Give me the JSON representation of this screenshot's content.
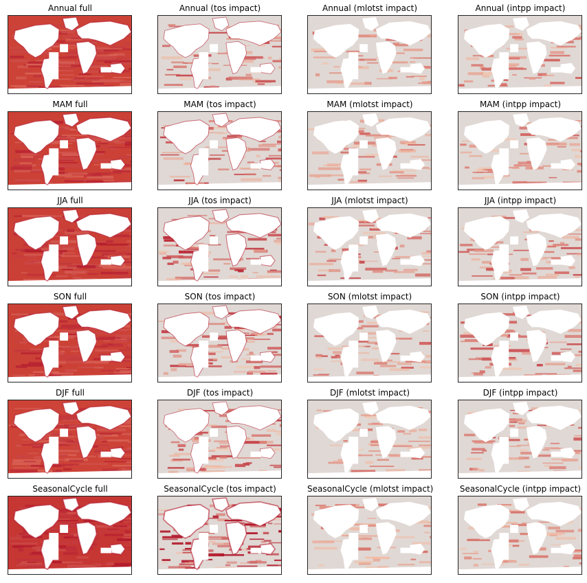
{
  "figure": {
    "rows": [
      {
        "panels": [
          {
            "title": "Annual full",
            "kind": "full",
            "intensity": 0.7
          },
          {
            "title": "Annual (tos impact)",
            "kind": "tos",
            "intensity": 0.45
          },
          {
            "title": "Annual (mlotst impact)",
            "kind": "mlotst",
            "intensity": 0.3
          },
          {
            "title": "Annual (intpp impact)",
            "kind": "intpp",
            "intensity": 0.35
          }
        ]
      },
      {
        "panels": [
          {
            "title": "MAM full",
            "kind": "full",
            "intensity": 0.72
          },
          {
            "title": "MAM (tos impact)",
            "kind": "tos",
            "intensity": 0.5
          },
          {
            "title": "MAM (mlotst impact)",
            "kind": "mlotst",
            "intensity": 0.35
          },
          {
            "title": "MAM (intpp impact)",
            "kind": "intpp",
            "intensity": 0.35
          }
        ]
      },
      {
        "panels": [
          {
            "title": "JJA full",
            "kind": "full",
            "intensity": 0.75
          },
          {
            "title": "JJA (tos impact)",
            "kind": "tos",
            "intensity": 0.55
          },
          {
            "title": "JJA (mlotst impact)",
            "kind": "mlotst",
            "intensity": 0.45
          },
          {
            "title": "JJA (intpp impact)",
            "kind": "intpp",
            "intensity": 0.4
          }
        ]
      },
      {
        "panels": [
          {
            "title": "SON full",
            "kind": "full",
            "intensity": 0.72
          },
          {
            "title": "SON (tos impact)",
            "kind": "tos",
            "intensity": 0.5
          },
          {
            "title": "SON (mlotst impact)",
            "kind": "mlotst",
            "intensity": 0.4
          },
          {
            "title": "SON (intpp impact)",
            "kind": "intpp",
            "intensity": 0.45
          }
        ]
      },
      {
        "panels": [
          {
            "title": "DJF full",
            "kind": "full",
            "intensity": 0.68
          },
          {
            "title": "DJF (tos impact)",
            "kind": "tos",
            "intensity": 0.45
          },
          {
            "title": "DJF (mlotst impact)",
            "kind": "mlotst",
            "intensity": 0.3
          },
          {
            "title": "DJF (intpp impact)",
            "kind": "intpp",
            "intensity": 0.4
          }
        ]
      },
      {
        "panels": [
          {
            "title": "SeasonalCycle full",
            "kind": "full",
            "intensity": 0.95
          },
          {
            "title": "SeasonalCycle (tos impact)",
            "kind": "tos",
            "intensity": 0.85
          },
          {
            "title": "SeasonalCycle (mlotst impact)",
            "kind": "mlotst",
            "intensity": 0.3
          },
          {
            "title": "SeasonalCycle (intpp impact)",
            "kind": "intpp",
            "intensity": 0.3
          }
        ]
      }
    ],
    "colors": {
      "background_ocean": "#e0d8d4",
      "low": "#f7c4a8",
      "mid": "#e0603f",
      "high": "#b2182b",
      "land": "#ffffff",
      "frame": "#222222"
    }
  }
}
